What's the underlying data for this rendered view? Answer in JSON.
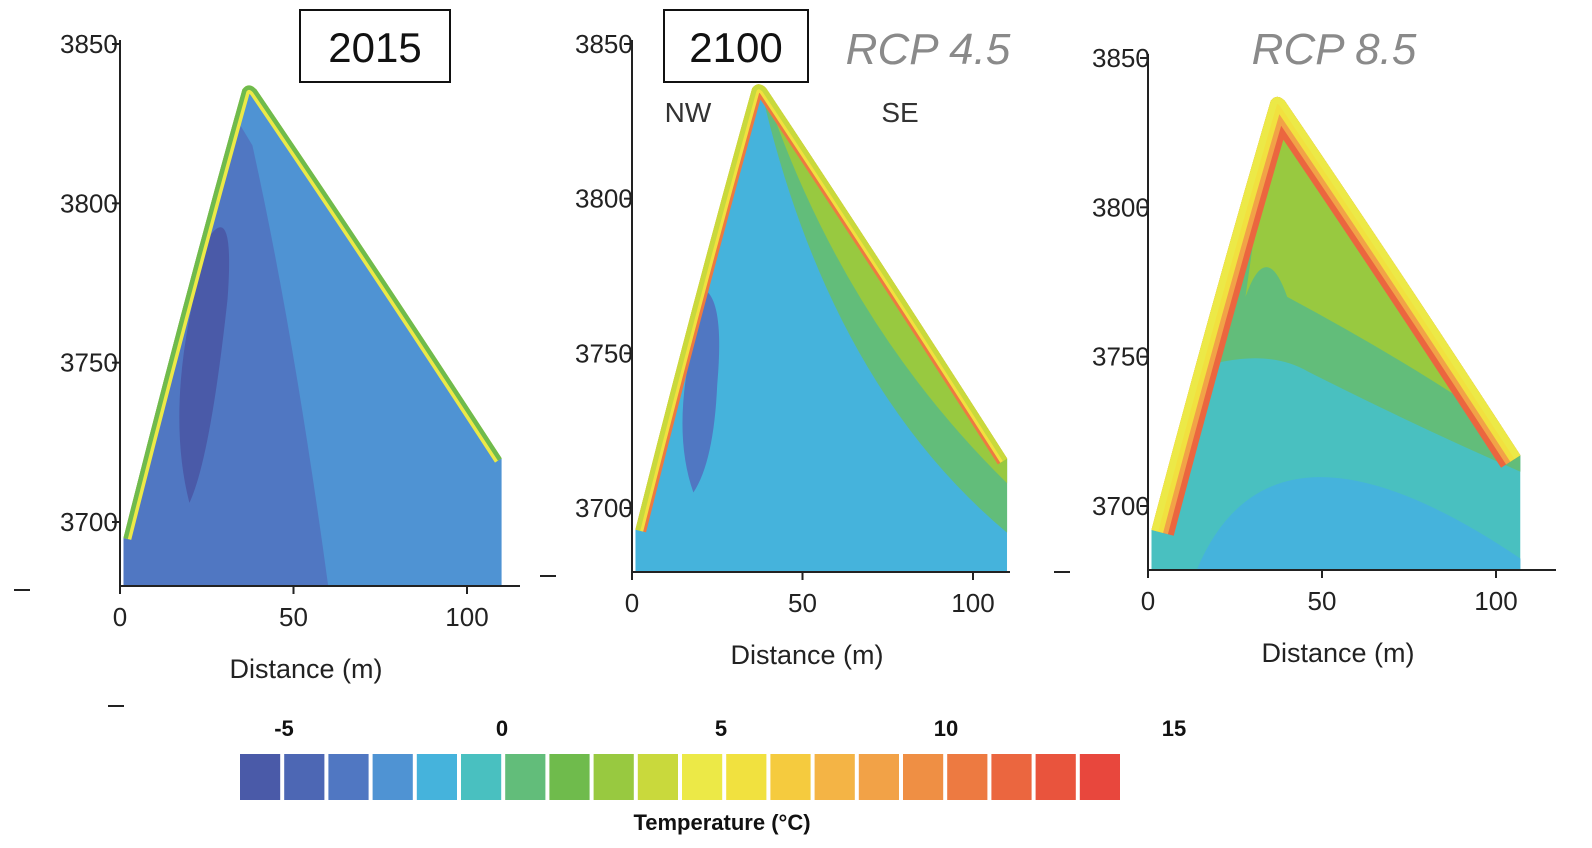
{
  "chart_data": [
    {
      "type": "heatmap",
      "label": "2015",
      "xlabel": "Distance (m)",
      "xticks": [
        0,
        50,
        100
      ],
      "yticks": [
        3700,
        3750,
        3800,
        3850
      ],
      "xlim": [
        0,
        110
      ],
      "ylim": [
        3680,
        3850
      ],
      "profile": [
        [
          1,
          3695
        ],
        [
          37,
          3837
        ],
        [
          110,
          3720
        ]
      ],
      "field": {
        "core": -5,
        "cold": -3,
        "body": -1.5,
        "surface": 6
      }
    },
    {
      "type": "heatmap",
      "label": "2100",
      "scenario": "RCP 4.5",
      "dir_left": "NW",
      "dir_right": "SE",
      "xlabel": "Distance (m)",
      "xticks": [
        0,
        50,
        100
      ],
      "yticks": [
        3700,
        3750,
        3800,
        3850
      ],
      "xlim": [
        0,
        110
      ],
      "ylim": [
        3680,
        3850
      ],
      "profile": [
        [
          1,
          3693
        ],
        [
          37,
          3837
        ],
        [
          110,
          3716
        ]
      ],
      "field": {
        "core": -3,
        "body": -1,
        "se_mid": 1.5,
        "se_near": 3,
        "surface": 12
      }
    },
    {
      "type": "heatmap",
      "scenario": "RCP 8.5",
      "xlabel": "Distance (m)",
      "xticks": [
        0,
        50,
        100
      ],
      "yticks": [
        3700,
        3750,
        3800,
        3850
      ],
      "xlim": [
        0,
        110
      ],
      "ylim": [
        3680,
        3850
      ],
      "profile": [
        [
          1,
          3692
        ],
        [
          37,
          3837
        ],
        [
          107,
          3717
        ]
      ],
      "field": {
        "deep": -1,
        "lower": 0,
        "mid": 1.5,
        "upper": 3,
        "near_surface": 6,
        "surface": 13
      }
    }
  ],
  "colorbar": {
    "title": "Temperature (°C)",
    "ticks": [
      -5,
      0,
      5,
      10,
      15
    ],
    "colors": [
      "#4a5aa8",
      "#4d67b4",
      "#5077c2",
      "#4f93d3",
      "#45b3dc",
      "#49c0c0",
      "#62bd7a",
      "#6fbb4c",
      "#98c940",
      "#c9d93c",
      "#ece947",
      "#f1e13f",
      "#f5cb3e",
      "#f4b445",
      "#f2a247",
      "#ef8f44",
      "#ed7a41",
      "#eb663f",
      "#e9543d",
      "#e8473d"
    ]
  }
}
